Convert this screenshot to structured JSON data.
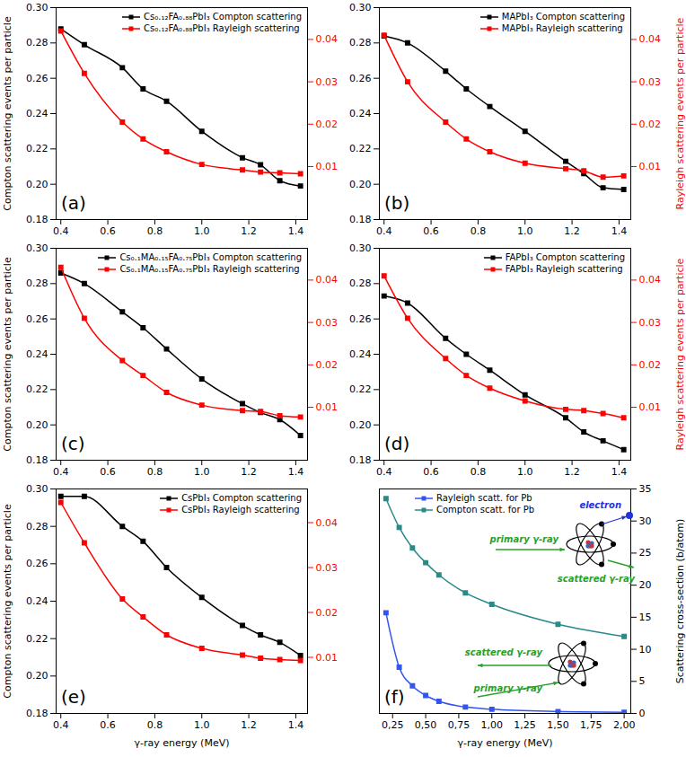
{
  "chart_data": [
    {
      "type": "line",
      "panel_label": "(a)",
      "ylabel": "Compton scattering events per particle",
      "x": [
        0.4,
        0.5,
        0.662,
        0.75,
        0.85,
        1.0,
        1.173,
        1.25,
        1.332,
        1.42
      ],
      "xlim": [
        0.38,
        1.45
      ],
      "xticks": [
        0.4,
        0.6,
        0.8,
        {
          "value": 1,
          "label": "1.0"
        },
        1.2,
        1.4
      ],
      "ylim": [
        0.18,
        0.3
      ],
      "yticks": [
        0.18,
        {
          "value": 0.2,
          "label": "0.20"
        },
        0.22,
        0.24,
        0.26,
        0.28,
        {
          "value": 0.3,
          "label": "0.30"
        }
      ],
      "y2lim": [
        -0.0025,
        0.0475
      ],
      "y2ticks": [
        0.01,
        0.02,
        0.03,
        0.04
      ],
      "legend": "upper right",
      "series": [
        {
          "name": "Cs₀.₁₂FA₀.₈₈PbI₃ Compton scattering",
          "color": "#000000",
          "marker": "square",
          "values": [
            0.288,
            0.279,
            0.266,
            0.254,
            0.247,
            0.23,
            0.215,
            0.211,
            0.202,
            0.199
          ]
        },
        {
          "name": "Cs₀.₁₂FA₀.₈₈PbI₃ Rayleigh scattering",
          "color": "#ff0000",
          "marker": "square",
          "axis": "y2",
          "values": [
            0.042,
            0.032,
            0.0205,
            0.0165,
            0.0135,
            0.0105,
            0.0092,
            0.0087,
            0.0085,
            0.0083
          ]
        }
      ]
    },
    {
      "type": "line",
      "panel_label": "(b)",
      "y2label": "Rayleigh scattering events per particle",
      "x": [
        0.4,
        0.5,
        0.662,
        0.75,
        0.85,
        1.0,
        1.173,
        1.25,
        1.332,
        1.42
      ],
      "xlim": [
        0.38,
        1.45
      ],
      "xticks": [
        0.4,
        0.6,
        0.8,
        {
          "value": 1,
          "label": "1.0"
        },
        1.2,
        1.4
      ],
      "ylim": [
        0.18,
        0.3
      ],
      "yticks": [
        0.18,
        {
          "value": 0.2,
          "label": "0.20"
        },
        0.22,
        0.24,
        0.26,
        0.28,
        {
          "value": 0.3,
          "label": "0.30"
        }
      ],
      "y2lim": [
        -0.0025,
        0.0475
      ],
      "y2ticks": [
        0.01,
        0.02,
        0.03,
        0.04
      ],
      "legend": "upper right",
      "series": [
        {
          "name": "MAPbI₃ Compton scattering",
          "color": "#000000",
          "marker": "square",
          "values": [
            0.284,
            0.28,
            0.264,
            0.254,
            0.244,
            0.23,
            0.213,
            0.206,
            0.198,
            0.197
          ]
        },
        {
          "name": "MAPbI₃ Rayleigh scattering",
          "color": "#ff0000",
          "marker": "square",
          "axis": "y2",
          "values": [
            0.041,
            0.03,
            0.0205,
            0.0165,
            0.0135,
            0.0108,
            0.0095,
            0.009,
            0.0075,
            0.0078
          ]
        }
      ]
    },
    {
      "type": "line",
      "panel_label": "(c)",
      "ylabel": "Compton scattering events per particle",
      "x": [
        0.4,
        0.5,
        0.662,
        0.75,
        0.85,
        1.0,
        1.173,
        1.25,
        1.332,
        1.42
      ],
      "xlim": [
        0.38,
        1.45
      ],
      "xticks": [
        0.4,
        0.6,
        0.8,
        {
          "value": 1,
          "label": "1.0"
        },
        1.2,
        1.4
      ],
      "ylim": [
        0.18,
        0.3
      ],
      "yticks": [
        0.18,
        {
          "value": 0.2,
          "label": "0.20"
        },
        0.22,
        0.24,
        0.26,
        0.28,
        {
          "value": 0.3,
          "label": "0.30"
        }
      ],
      "y2lim": [
        -0.0025,
        0.0475
      ],
      "y2ticks": [
        0.01,
        0.02,
        0.03,
        0.04
      ],
      "legend": "upper right",
      "series": [
        {
          "name": "Cs₀.₁MA₀.₁₅FA₀.₇₅PbI₃ Compton scattering",
          "color": "#000000",
          "marker": "square",
          "values": [
            0.286,
            0.28,
            0.264,
            0.255,
            0.243,
            0.226,
            0.212,
            0.207,
            0.203,
            0.194
          ]
        },
        {
          "name": "Cs₀.₁MA₀.₁₅FA₀.₇₅PbI₃ Rayleigh scattering",
          "color": "#ff0000",
          "marker": "square",
          "axis": "y2",
          "values": [
            0.043,
            0.031,
            0.021,
            0.0175,
            0.0135,
            0.0105,
            0.0092,
            0.009,
            0.008,
            0.0077
          ]
        }
      ]
    },
    {
      "type": "line",
      "panel_label": "(d)",
      "y2label": "Rayleigh scattering events per particle",
      "x": [
        0.4,
        0.5,
        0.662,
        0.75,
        0.85,
        1.0,
        1.173,
        1.25,
        1.332,
        1.42
      ],
      "xlim": [
        0.38,
        1.45
      ],
      "xticks": [
        0.4,
        0.6,
        0.8,
        {
          "value": 1,
          "label": "1.0"
        },
        1.2,
        1.4
      ],
      "ylim": [
        0.18,
        0.3
      ],
      "yticks": [
        0.18,
        {
          "value": 0.2,
          "label": "0.20"
        },
        0.22,
        0.24,
        0.26,
        0.28,
        {
          "value": 0.3,
          "label": "0.30"
        }
      ],
      "y2lim": [
        -0.0025,
        0.0475
      ],
      "y2ticks": [
        0.01,
        0.02,
        0.03,
        0.04
      ],
      "legend": "upper right",
      "series": [
        {
          "name": "FAPbI₃ Compton scattering",
          "color": "#000000",
          "marker": "square",
          "values": [
            0.273,
            0.269,
            0.249,
            0.24,
            0.231,
            0.217,
            0.204,
            0.196,
            0.191,
            0.186
          ]
        },
        {
          "name": "FAPbI₃ Rayleigh scattering",
          "color": "#ff0000",
          "marker": "square",
          "axis": "y2",
          "values": [
            0.041,
            0.031,
            0.0215,
            0.0175,
            0.0145,
            0.0115,
            0.0095,
            0.0092,
            0.0085,
            0.0075
          ]
        }
      ]
    },
    {
      "type": "line",
      "panel_label": "(e)",
      "xlabel": "γ-ray energy (MeV)",
      "ylabel": "Compton scattering events per particle",
      "x": [
        0.4,
        0.5,
        0.662,
        0.75,
        0.85,
        1.0,
        1.173,
        1.25,
        1.332,
        1.42
      ],
      "xlim": [
        0.38,
        1.45
      ],
      "xticks": [
        0.4,
        0.6,
        0.8,
        {
          "value": 1,
          "label": "1.0"
        },
        1.2,
        1.4
      ],
      "ylim": [
        0.18,
        0.3
      ],
      "yticks": [
        0.18,
        {
          "value": 0.2,
          "label": "0.20"
        },
        0.22,
        0.24,
        0.26,
        0.28,
        {
          "value": 0.3,
          "label": "0.30"
        }
      ],
      "y2lim": [
        -0.0025,
        0.0475
      ],
      "y2ticks": [
        0.01,
        0.02,
        0.03,
        0.04
      ],
      "legend": "upper right",
      "series": [
        {
          "name": "CsPbI₃ Compton scattering",
          "color": "#000000",
          "marker": "square",
          "values": [
            0.296,
            0.296,
            0.28,
            0.272,
            0.258,
            0.242,
            0.227,
            0.222,
            0.218,
            0.211
          ]
        },
        {
          "name": "CsPbI₃ Rayleigh scattering",
          "color": "#ff0000",
          "marker": "square",
          "axis": "y2",
          "values": [
            0.0445,
            0.0355,
            0.023,
            0.019,
            0.015,
            0.012,
            0.0105,
            0.0098,
            0.0095,
            0.0093
          ]
        }
      ]
    },
    {
      "type": "line",
      "panel_label": "(f)",
      "xlabel": "γ-ray energy (MeV)",
      "y2label": "Scattering cross-section (b/atom)",
      "x": [
        0.2,
        0.3,
        0.4,
        0.5,
        0.6,
        0.8,
        1.0,
        1.5,
        2.0
      ],
      "xlim": [
        0.15,
        2.05
      ],
      "xticks": [
        {
          "value": 0.25,
          "label": "0,25"
        },
        {
          "value": 0.5,
          "label": "0,50"
        },
        {
          "value": 0.75,
          "label": "0,75"
        },
        {
          "value": 1,
          "label": "1,00"
        },
        {
          "value": 1.25,
          "label": "1,25"
        },
        {
          "value": 1.5,
          "label": "1,50"
        },
        {
          "value": 1.75,
          "label": "1,75"
        },
        {
          "value": 2,
          "label": "2,00"
        }
      ],
      "y2lim": [
        0,
        35
      ],
      "y2ticks": [
        0,
        5,
        10,
        15,
        20,
        25,
        30,
        35
      ],
      "legend": "upper left",
      "series": [
        {
          "name": "Rayleigh scatt. for Pb",
          "color": "#3355ee",
          "marker": "square",
          "axis": "y2",
          "values": [
            15.7,
            7.2,
            4.3,
            2.8,
            1.9,
            1.0,
            0.65,
            0.3,
            0.18
          ]
        },
        {
          "name": "Compton scatt. for Pb",
          "color": "#2a8a8a",
          "marker": "square",
          "axis": "y2",
          "values": [
            33.5,
            29.0,
            25.8,
            23.5,
            21.6,
            18.8,
            17.0,
            13.9,
            12.0
          ]
        }
      ],
      "annotations": [
        "electron",
        "primary γ-ray",
        "scattered γ-ray",
        "scattered γ-ray",
        "primary γ-ray"
      ]
    }
  ]
}
